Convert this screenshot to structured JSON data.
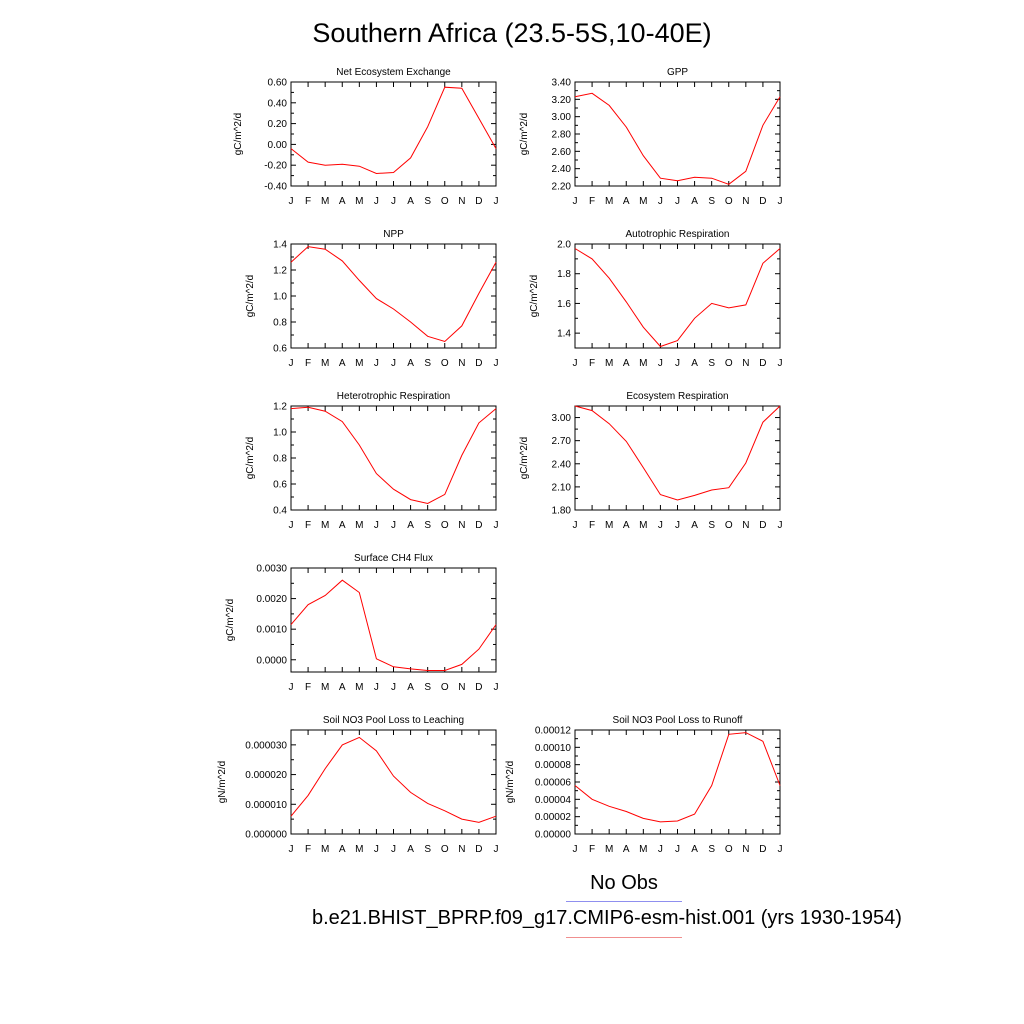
{
  "title": "Southern Africa (23.5-5S,10-40E)",
  "months": [
    "J",
    "F",
    "M",
    "A",
    "M",
    "J",
    "J",
    "A",
    "S",
    "O",
    "N",
    "D",
    "J"
  ],
  "legend": {
    "no_obs_label": "No Obs",
    "no_obs_color": "#8f8fef",
    "case_label": "b.e21.BHIST_BPRP.f09_g17.CMIP6-esm-hist.001 (yrs 1930-1954)",
    "case_color": "#ff0000"
  },
  "chart_data": [
    {
      "id": "nee",
      "type": "line",
      "title": "Net Ecosystem Exchange",
      "ylabel": "gC/m^2/d",
      "ylim": [
        -0.4,
        0.6
      ],
      "yticks": [
        "0.60",
        "0.40",
        "0.20",
        "0.00",
        "-0.20",
        "-0.40"
      ],
      "ytick_values": [
        0.6,
        0.4,
        0.2,
        0.0,
        -0.2,
        -0.4
      ],
      "series": [
        {
          "values": [
            -0.04,
            -0.17,
            -0.2,
            -0.19,
            -0.21,
            -0.28,
            -0.27,
            -0.13,
            0.17,
            0.55,
            0.54,
            0.25,
            -0.04
          ]
        }
      ]
    },
    {
      "id": "gpp",
      "type": "line",
      "title": "GPP",
      "ylabel": "gC/m^2/d",
      "ylim": [
        2.2,
        3.4
      ],
      "yticks": [
        "3.40",
        "3.20",
        "3.00",
        "2.80",
        "2.60",
        "2.40",
        "2.20"
      ],
      "ytick_values": [
        3.4,
        3.2,
        3.0,
        2.8,
        2.6,
        2.4,
        2.2
      ],
      "series": [
        {
          "values": [
            3.23,
            3.27,
            3.13,
            2.88,
            2.55,
            2.29,
            2.26,
            2.3,
            2.29,
            2.22,
            2.37,
            2.9,
            3.23
          ]
        }
      ]
    },
    {
      "id": "npp",
      "type": "line",
      "title": "NPP",
      "ylabel": "gC/m^2/d",
      "ylim": [
        0.6,
        1.4
      ],
      "yticks": [
        "1.4",
        "1.2",
        "1.0",
        "0.8",
        "0.6"
      ],
      "ytick_values": [
        1.4,
        1.2,
        1.0,
        0.8,
        0.6
      ],
      "series": [
        {
          "values": [
            1.26,
            1.38,
            1.36,
            1.27,
            1.12,
            0.98,
            0.9,
            0.8,
            0.69,
            0.65,
            0.77,
            1.02,
            1.26
          ]
        }
      ]
    },
    {
      "id": "ar",
      "type": "line",
      "title": "Autotrophic Respiration",
      "ylabel": "gC/m^2/d",
      "ylim": [
        1.3,
        2.0
      ],
      "yticks": [
        "2.0",
        "1.8",
        "1.6",
        "1.4"
      ],
      "ytick_values": [
        2.0,
        1.8,
        1.6,
        1.4
      ],
      "series": [
        {
          "values": [
            1.97,
            1.9,
            1.77,
            1.61,
            1.44,
            1.31,
            1.35,
            1.5,
            1.6,
            1.57,
            1.59,
            1.87,
            1.97
          ]
        }
      ]
    },
    {
      "id": "hr",
      "type": "line",
      "title": "Heterotrophic Respiration",
      "ylabel": "gC/m^2/d",
      "ylim": [
        0.4,
        1.2
      ],
      "yticks": [
        "1.2",
        "1.0",
        "0.8",
        "0.6",
        "0.4"
      ],
      "ytick_values": [
        1.2,
        1.0,
        0.8,
        0.6,
        0.4
      ],
      "series": [
        {
          "values": [
            1.18,
            1.19,
            1.16,
            1.08,
            0.9,
            0.68,
            0.56,
            0.48,
            0.45,
            0.52,
            0.82,
            1.07,
            1.18
          ]
        }
      ]
    },
    {
      "id": "er",
      "type": "line",
      "title": "Ecosystem Respiration",
      "ylabel": "gC/m^2/d",
      "ylim": [
        1.8,
        3.15
      ],
      "yticks": [
        "3.00",
        "2.70",
        "2.40",
        "2.10",
        "1.80"
      ],
      "ytick_values": [
        3.0,
        2.7,
        2.4,
        2.1,
        1.8
      ],
      "series": [
        {
          "values": [
            3.15,
            3.09,
            2.92,
            2.69,
            2.35,
            2.0,
            1.93,
            1.99,
            2.06,
            2.09,
            2.41,
            2.94,
            3.15
          ]
        }
      ]
    },
    {
      "id": "ch4",
      "type": "line",
      "title": "Surface CH4 Flux",
      "ylabel": "gC/m^2/d",
      "ylim": [
        -0.0004,
        0.003
      ],
      "yticks": [
        "0.0030",
        "0.0020",
        "0.0010",
        "0.0000"
      ],
      "ytick_values": [
        0.003,
        0.002,
        0.001,
        0.0
      ],
      "series": [
        {
          "values": [
            0.00115,
            0.0018,
            0.0021,
            0.0026,
            0.0022,
            3e-05,
            -0.00023,
            -0.0003,
            -0.00035,
            -0.00035,
            -0.00015,
            0.00035,
            0.00115
          ]
        }
      ]
    },
    {
      "id": "leach",
      "type": "line",
      "title": "Soil NO3 Pool Loss to Leaching",
      "ylabel": "gN/m^2/d",
      "ylim": [
        0,
        3.5e-05
      ],
      "yticks": [
        "0.000030",
        "0.000020",
        "0.000010",
        "0.000000"
      ],
      "ytick_values": [
        3e-05,
        2e-05,
        1e-05,
        0.0
      ],
      "series": [
        {
          "values": [
            6e-06,
            1.3e-05,
            2.2e-05,
            3e-05,
            3.25e-05,
            2.8e-05,
            1.95e-05,
            1.4e-05,
            1.03e-05,
            7.8e-06,
            5e-06,
            3.9e-06,
            6e-06
          ]
        }
      ]
    },
    {
      "id": "runoff",
      "type": "line",
      "title": "Soil NO3 Pool Loss to Runoff",
      "ylabel": "gN/m^2/d",
      "ylim": [
        0,
        0.00012
      ],
      "yticks": [
        "0.00012",
        "0.00010",
        "0.00008",
        "0.00006",
        "0.00004",
        "0.00002",
        "0.00000"
      ],
      "ytick_values": [
        0.00012,
        0.0001,
        8e-05,
        6e-05,
        4e-05,
        2e-05,
        0.0
      ],
      "series": [
        {
          "values": [
            5.6e-05,
            4e-05,
            3.2e-05,
            2.6e-05,
            1.8e-05,
            1.4e-05,
            1.5e-05,
            2.3e-05,
            5.6e-05,
            0.000115,
            0.000117,
            0.000107,
            5.6e-05
          ]
        }
      ]
    }
  ]
}
